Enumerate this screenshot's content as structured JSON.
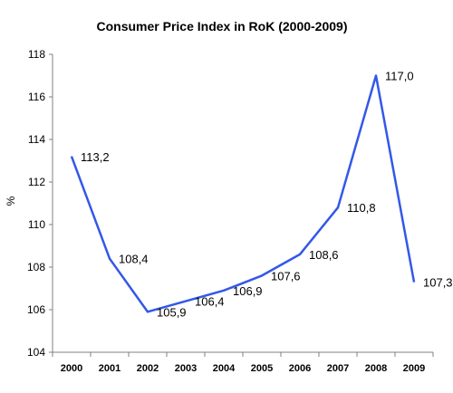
{
  "chart_data": {
    "type": "line",
    "title": "Consumer Price Index in RoK (2000-2009)",
    "ylabel": "%",
    "xlabel": "",
    "categories": [
      "2000",
      "2001",
      "2002",
      "2003",
      "2004",
      "2005",
      "2006",
      "2007",
      "2008",
      "2009"
    ],
    "series": [
      {
        "values": [
          113.2,
          108.4,
          105.9,
          106.4,
          106.9,
          107.6,
          108.6,
          110.8,
          117.0,
          107.3
        ],
        "data_labels": [
          "113,2",
          "108,4",
          "105,9",
          "106,4",
          "106,9",
          "107,6",
          "108,6",
          "110,8",
          "117,0",
          "107,3"
        ],
        "color": "#3358e8"
      }
    ],
    "ylim": [
      104,
      118
    ],
    "yticks": [
      "104",
      "106",
      "108",
      "110",
      "112",
      "114",
      "116",
      "118"
    ],
    "grid": false,
    "legend": "none"
  }
}
